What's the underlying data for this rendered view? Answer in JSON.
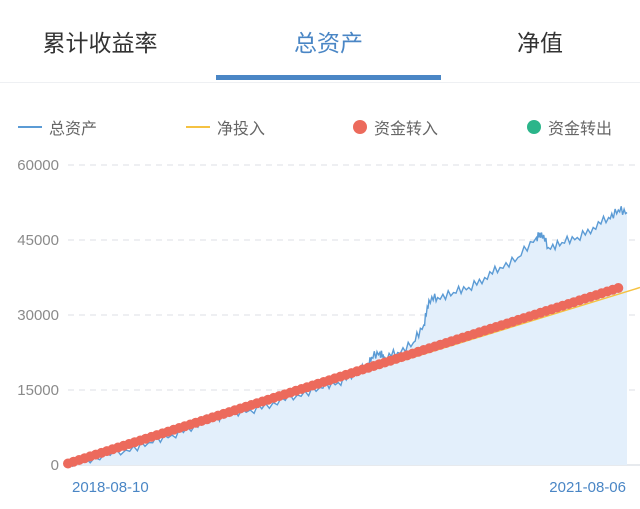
{
  "tabs": [
    {
      "label": "累计收益率"
    },
    {
      "label": "总资产"
    },
    {
      "label": "净值"
    }
  ],
  "active_tab": 1,
  "colors": {
    "total_assets": "#5b9bd5",
    "area_fill": "#e3effb",
    "net_investment": "#f5c242",
    "inflow": "#ec6a5c",
    "outflow": "#2bb58a",
    "accent": "#4a86c5"
  },
  "legend": {
    "total_assets": "总资产",
    "net_investment": "净投入",
    "inflow": "资金转入",
    "outflow": "资金转出"
  },
  "chart_data": {
    "type": "line",
    "title": "",
    "xlabel": "",
    "ylabel": "",
    "x_range": [
      "2018-08-10",
      "2021-08-06"
    ],
    "ylim": [
      0,
      60000
    ],
    "y_ticks": [
      "0",
      "15000",
      "30000",
      "45000",
      "60000"
    ],
    "x_ticks": [
      "2018-08-10",
      "2021-08-06"
    ],
    "grid": true,
    "legend_position": "top",
    "series": [
      {
        "name": "总资产",
        "type": "area",
        "points": [
          [
            "2018-08-10",
            500
          ],
          [
            "2018-10-01",
            1500
          ],
          [
            "2018-12-01",
            3000
          ],
          [
            "2019-01-15",
            4500
          ],
          [
            "2019-03-01",
            6000
          ],
          [
            "2019-04-15",
            8000
          ],
          [
            "2019-05-20",
            9500
          ],
          [
            "2019-06-15",
            10000
          ],
          [
            "2019-08-01",
            11000
          ],
          [
            "2019-09-15",
            12500
          ],
          [
            "2019-11-01",
            14000
          ],
          [
            "2019-12-15",
            15500
          ],
          [
            "2020-01-20",
            16500
          ],
          [
            "2020-02-20",
            18500
          ],
          [
            "2020-03-15",
            19500
          ],
          [
            "2020-03-25",
            21500
          ],
          [
            "2020-04-10",
            22500
          ],
          [
            "2020-04-20",
            21500
          ],
          [
            "2020-05-15",
            22500
          ],
          [
            "2020-06-15",
            24500
          ],
          [
            "2020-07-05",
            28000
          ],
          [
            "2020-07-15",
            33000
          ],
          [
            "2020-08-01",
            33500
          ],
          [
            "2020-09-01",
            34500
          ],
          [
            "2020-10-01",
            35500
          ],
          [
            "2020-11-01",
            37500
          ],
          [
            "2020-12-01",
            39500
          ],
          [
            "2021-01-05",
            41500
          ],
          [
            "2021-02-10",
            45500
          ],
          [
            "2021-02-20",
            46500
          ],
          [
            "2021-03-05",
            43500
          ],
          [
            "2021-04-01",
            44500
          ],
          [
            "2021-05-01",
            45500
          ],
          [
            "2021-06-01",
            47500
          ],
          [
            "2021-07-01",
            49500
          ],
          [
            "2021-07-20",
            51000
          ],
          [
            "2021-08-06",
            50500
          ]
        ]
      },
      {
        "name": "净投入",
        "type": "line",
        "points": [
          [
            "2018-08-10",
            300
          ],
          [
            "2021-08-06",
            35500
          ]
        ]
      },
      {
        "name": "资金转入",
        "type": "scatter",
        "start": "2018-08-10",
        "end": "2021-07-20",
        "count": 100,
        "y_start": 300,
        "y_end": 35400
      },
      {
        "name": "资金转出",
        "type": "scatter",
        "points": []
      }
    ]
  }
}
